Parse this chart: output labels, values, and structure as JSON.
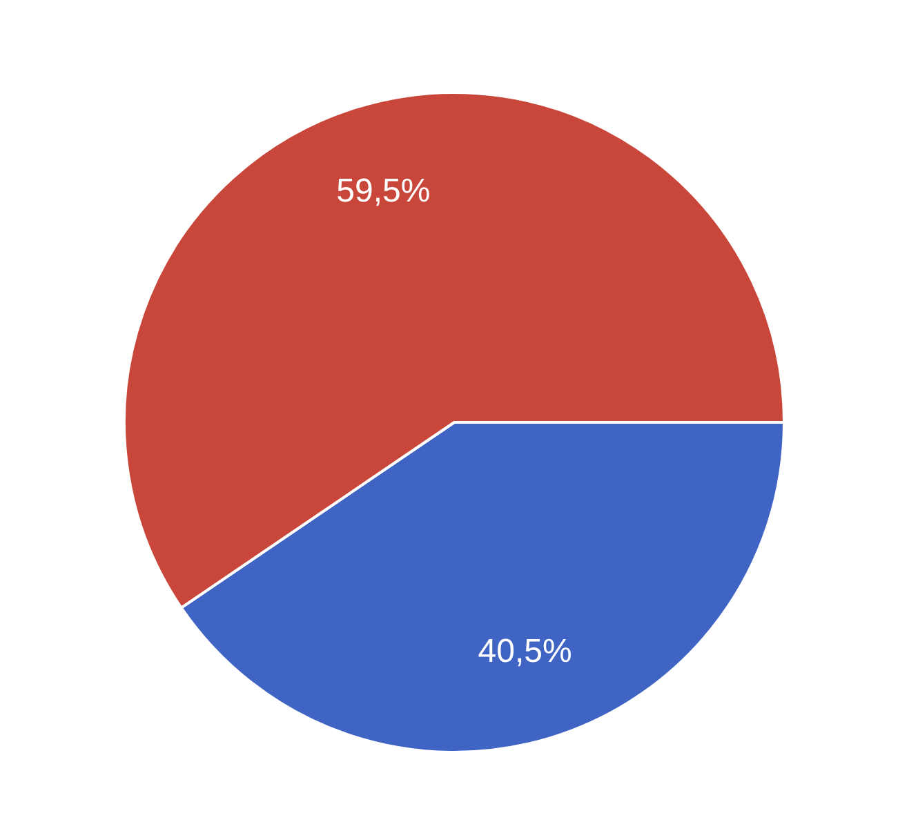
{
  "chart_data": {
    "type": "pie",
    "categories": [
      null,
      null
    ],
    "values": [
      40.5,
      59.5
    ],
    "colors": [
      "#3f64c4",
      "#c9473a"
    ],
    "value_labels": [
      "40,5%",
      "59,5%"
    ],
    "legend": false
  }
}
